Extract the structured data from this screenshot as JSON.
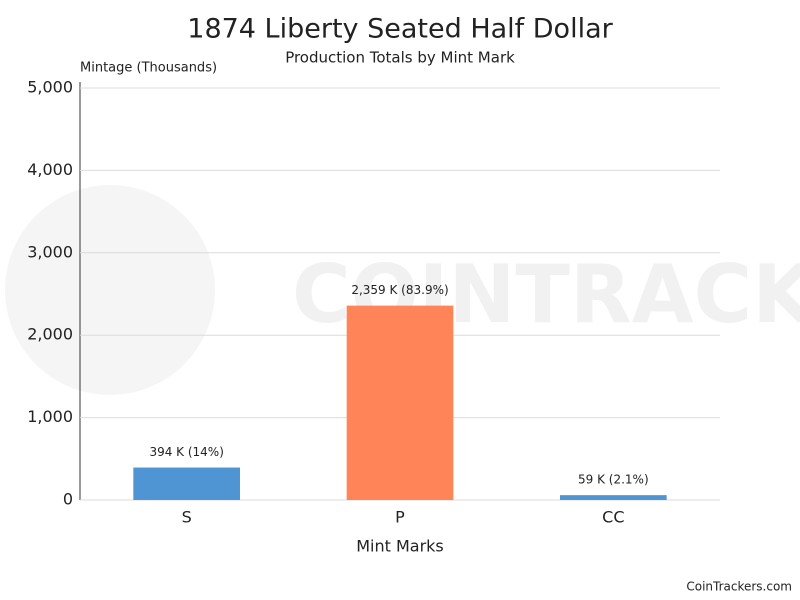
{
  "chart_data": {
    "type": "bar",
    "title": "1874 Liberty Seated Half Dollar",
    "subtitle": "Production Totals by Mint Mark",
    "y_label": "Mintage (Thousands)",
    "x_label": "Mint Marks",
    "watermark": "COINTRACKERS",
    "credit": "CoinTrackers.com",
    "categories": [
      "S",
      "P",
      "CC"
    ],
    "values": [
      394,
      2359,
      59
    ],
    "value_labels": [
      "394 K (14%)",
      "2,359 K (83.9%)",
      "59 K (2.1%)"
    ],
    "colors": [
      "#4f95d3",
      "#ff8558",
      "#4f95d3"
    ],
    "ylim": [
      0,
      5000
    ],
    "yticks": [
      0,
      {
        "value": 1000,
        "label": "1,000"
      },
      {
        "value": 2000,
        "label": "2,000"
      },
      {
        "value": 3000,
        "label": "3,000"
      },
      {
        "value": 4000,
        "label": "4,000"
      },
      {
        "value": 5000,
        "label": "5,000"
      }
    ],
    "grid": true
  }
}
